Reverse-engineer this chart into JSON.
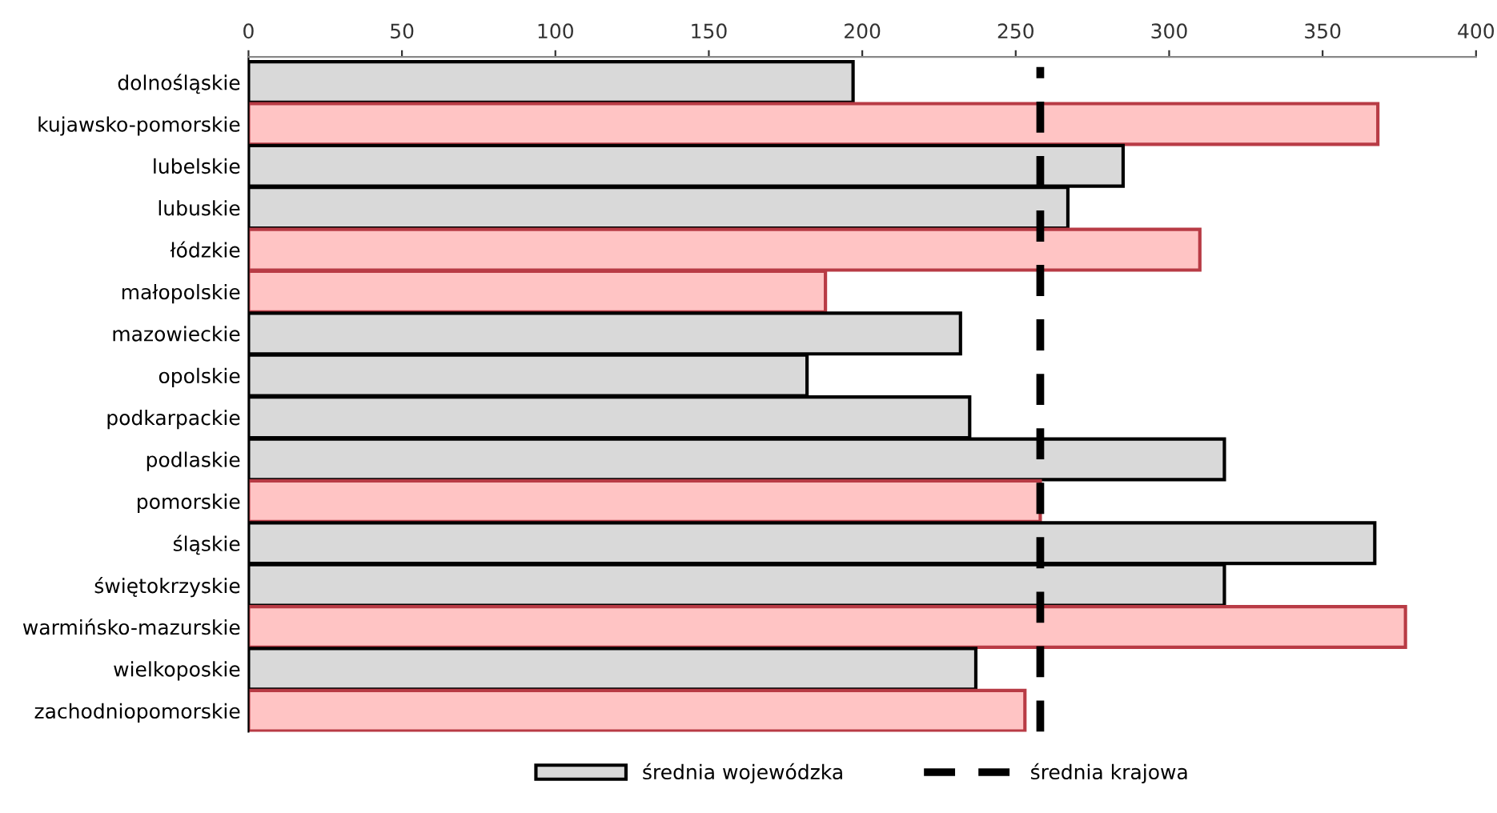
{
  "chart_data": {
    "type": "bar",
    "orientation": "horizontal",
    "categories": [
      "dolnośląskie",
      "kujawsko-pomorskie",
      "lubelskie",
      "lubuskie",
      "łódzkie",
      "małopolskie",
      "mazowieckie",
      "opolskie",
      "podkarpackie",
      "podlaskie",
      "pomorskie",
      "śląskie",
      "świętokrzyskie",
      "warmińsko-mazurskie",
      "wielkoposkie",
      "zachodniopomorskie"
    ],
    "series": [
      {
        "name": "średnia wojewódzka",
        "color": "#d9d9d9",
        "colors": [
          "#d9d9d9",
          "#ffc4c4",
          "#d9d9d9",
          "#d9d9d9",
          "#ffc4c4",
          "#ffc4c4",
          "#d9d9d9",
          "#d9d9d9",
          "#d9d9d9",
          "#d9d9d9",
          "#ffc4c4",
          "#d9d9d9",
          "#d9d9d9",
          "#ffc4c4",
          "#d9d9d9",
          "#ffc4c4"
        ],
        "values": [
          197,
          368,
          285,
          267,
          310,
          188,
          232,
          182,
          235,
          318,
          258,
          367,
          318,
          377,
          237,
          253
        ]
      }
    ],
    "xlim": [
      0,
      400
    ],
    "xticks": [
      0,
      50,
      100,
      150,
      200,
      250,
      300,
      350,
      400
    ],
    "ref_lines": [
      {
        "axis": "x",
        "value": 258,
        "label": "średnia krajowa",
        "color": "#000000",
        "line_style": "dashed"
      }
    ],
    "legend": "bottom",
    "grid": false
  }
}
